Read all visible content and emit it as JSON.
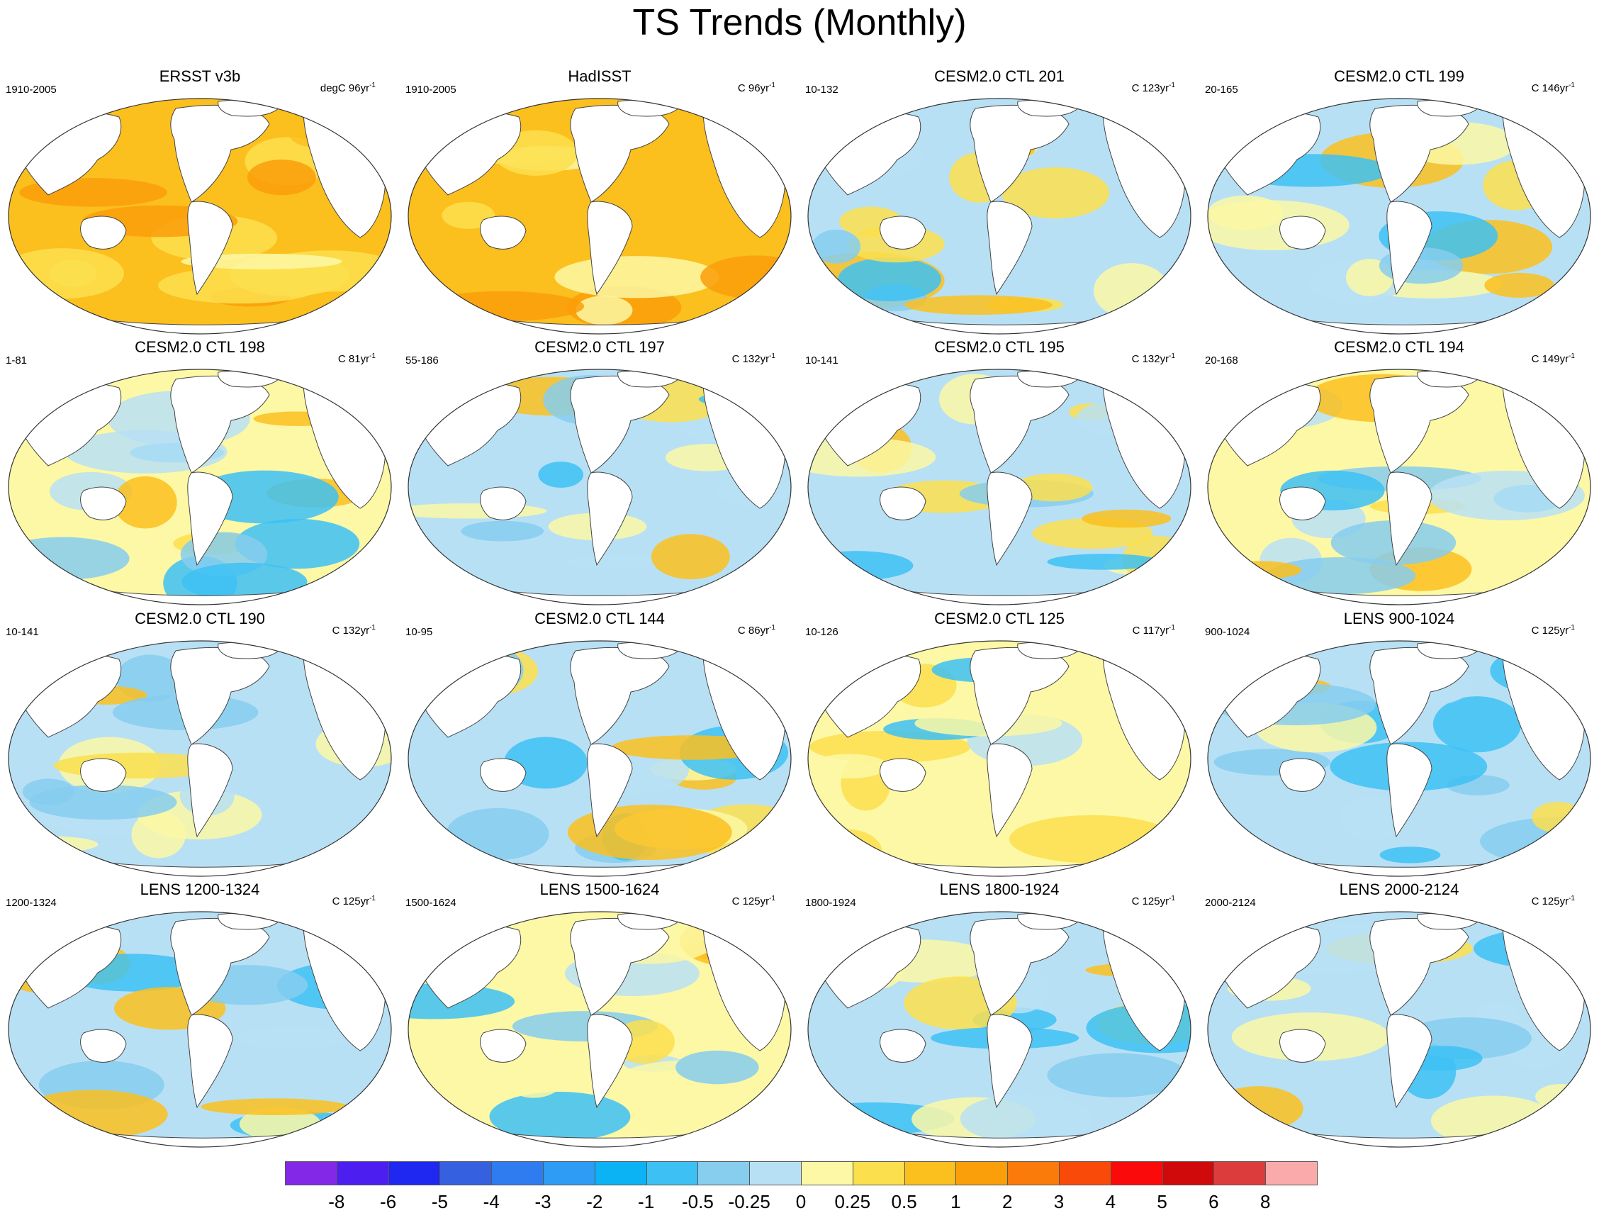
{
  "title": "TS Trends (Monthly)",
  "legend": {
    "colors": [
      "#8328e6",
      "#4d1ef0",
      "#1e28f0",
      "#3560e0",
      "#2e7cf0",
      "#2e9bf5",
      "#0bb3f5",
      "#3dc1f5",
      "#86cdee",
      "#b8e0f5",
      "#fcf8a5",
      "#fbdf4d",
      "#fbbf1e",
      "#fa9e0a",
      "#fa7a0a",
      "#fa4a0a",
      "#fa0a0a",
      "#d00a0a",
      "#dc3c3c",
      "#faaaaa"
    ],
    "labels": [
      "-8",
      "-6",
      "-5",
      "-4",
      "-3",
      "-2",
      "-1",
      "-0.5",
      "-0.25",
      "0",
      "0.25",
      "0.5",
      "1",
      "2",
      "3",
      "4",
      "5",
      "6",
      "8"
    ]
  },
  "panels": [
    {
      "title": "ERSST v3b",
      "left": "1910-2005",
      "right": "degC 96yr",
      "sup": "-1"
    },
    {
      "title": "HadISST",
      "left": "1910-2005",
      "right": "C 96yr",
      "sup": "-1"
    },
    {
      "title": "CESM2.0 CTL 201",
      "left": "10-132",
      "right": "C 123yr",
      "sup": "-1"
    },
    {
      "title": "CESM2.0 CTL 199",
      "left": "20-165",
      "right": "C 146yr",
      "sup": "-1"
    },
    {
      "title": "CESM2.0 CTL 198",
      "left": "1-81",
      "right": "C 81yr",
      "sup": "-1"
    },
    {
      "title": "CESM2.0 CTL 197",
      "left": "55-186",
      "right": "C 132yr",
      "sup": "-1"
    },
    {
      "title": "CESM2.0 CTL 195",
      "left": "10-141",
      "right": "C 132yr",
      "sup": "-1"
    },
    {
      "title": "CESM2.0 CTL 194",
      "left": "20-168",
      "right": "C 149yr",
      "sup": "-1"
    },
    {
      "title": "CESM2.0 CTL 190",
      "left": "10-141",
      "right": "C 132yr",
      "sup": "-1"
    },
    {
      "title": "CESM2.0 CTL 144",
      "left": "10-95",
      "right": "C 86yr",
      "sup": "-1"
    },
    {
      "title": "CESM2.0 CTL 125",
      "left": "10-126",
      "right": "C 117yr",
      "sup": "-1"
    },
    {
      "title": "LENS 900-1024",
      "left": "900-1024",
      "right": "C 125yr",
      "sup": "-1"
    },
    {
      "title": "LENS 1200-1324",
      "left": "1200-1324",
      "right": "C 125yr",
      "sup": "-1"
    },
    {
      "title": "LENS 1500-1624",
      "left": "1500-1624",
      "right": "C 125yr",
      "sup": "-1"
    },
    {
      "title": "LENS 1800-1924",
      "left": "1800-1924",
      "right": "C 125yr",
      "sup": "-1"
    },
    {
      "title": "LENS 2000-2124",
      "left": "2000-2124",
      "right": "C 125yr",
      "sup": "-1"
    }
  ]
}
